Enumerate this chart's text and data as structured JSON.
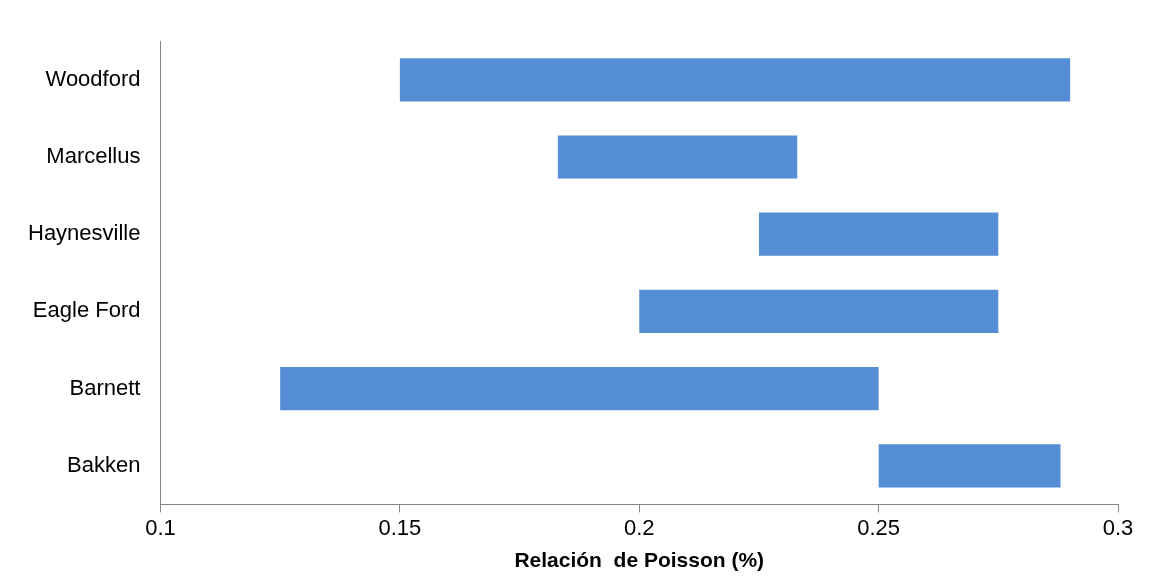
{
  "chart_data": {
    "type": "bar",
    "orientation": "horizontal",
    "xlabel": "Relación  de Poisson (%)",
    "categories": [
      "Woodford",
      "Marcellus",
      "Haynesville",
      "Eagle Ford",
      "Barnett",
      "Bakken"
    ],
    "base": [
      0.15,
      0.183,
      0.225,
      0.2,
      0.125,
      0.25
    ],
    "values": [
      0.14,
      0.05,
      0.05,
      0.075,
      0.125,
      0.038
    ],
    "color": "#558ed5",
    "xlim": [
      0.1,
      0.3
    ],
    "xticks": [
      0.1,
      0.15,
      0.2,
      0.25,
      0.3
    ],
    "grid": false,
    "legend": false
  }
}
